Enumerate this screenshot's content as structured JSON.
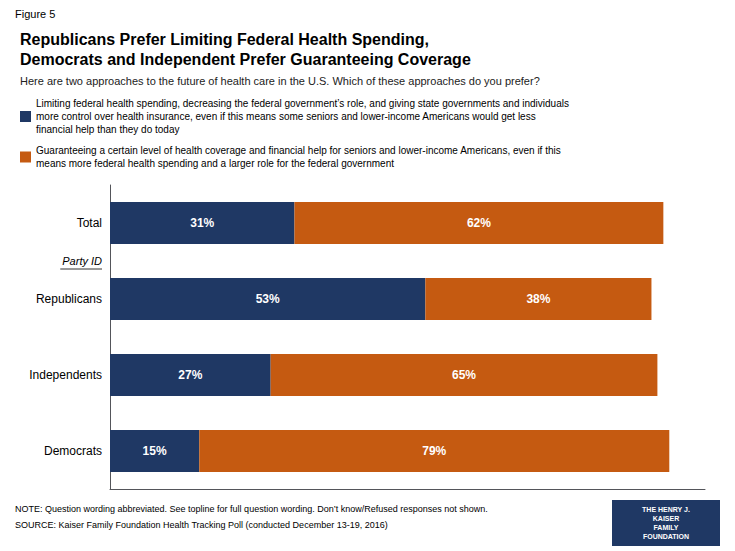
{
  "chart_data": {
    "type": "bar",
    "orientation": "horizontal",
    "stacked": true,
    "title": "Republicans Prefer Limiting Federal Health Spending,\nDemocrats and Independent Prefer Guaranteeing Coverage",
    "subtitle": "Here are two approaches to the future of health care in the U.S. Which of these approaches do you prefer?",
    "categories": [
      "Total",
      "Republicans",
      "Independents",
      "Democrats"
    ],
    "series": [
      {
        "name": "Limiting federal health spending, decreasing the federal government’s role, and giving state governments and individuals\nmore control over health insurance, even if this means some seniors and lower-income Americans would get less\nfinancial help than they do today",
        "color": "#1f3864",
        "values": [
          31,
          53,
          27,
          15
        ],
        "value_labels": [
          "31%",
          "53%",
          "27%",
          "15%"
        ]
      },
      {
        "name": "Guaranteeing a certain level of health coverage and financial help for seniors and lower-income Americans, even if this\nmeans more federal health spending and a larger role for the federal government",
        "color": "#c55a11",
        "values": [
          62,
          38,
          65,
          79
        ],
        "value_labels": [
          "62%",
          "38%",
          "65%",
          "79%"
        ]
      }
    ],
    "xlim": [
      0,
      100
    ],
    "tick_labels": "y",
    "grid": false,
    "legend": "top-left",
    "data_labels": true,
    "annotations": [
      {
        "text": "Figure 5"
      },
      {
        "text": "Party ID"
      },
      {
        "text": "NOTE: Question wording abbreviated. See topline for full question wording. Don’t know/Refused responses not shown."
      },
      {
        "text": "SOURCE: Kaiser Family Foundation Health Tracking Poll (conducted December 13-19, 2016)"
      },
      {
        "text": "THE HENRY J.\nKAISER\nFAMILY\nFOUNDATION",
        "color": "#1f3864"
      }
    ]
  }
}
